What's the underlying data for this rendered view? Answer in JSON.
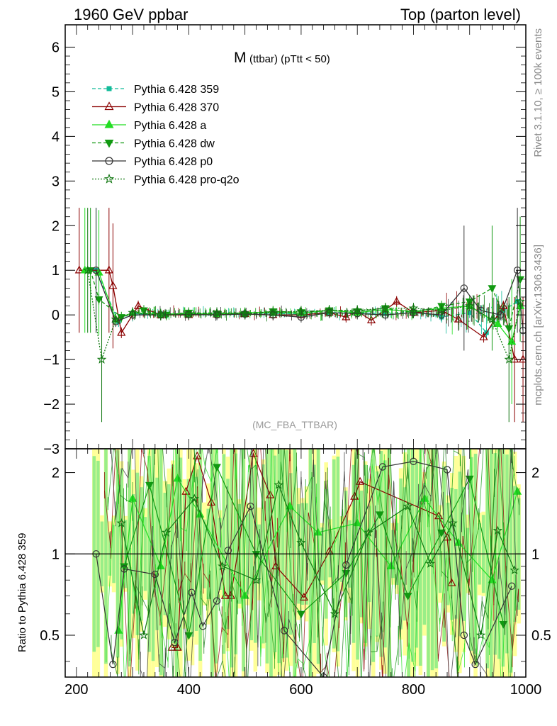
{
  "header": {
    "left": "1960 GeV ppbar",
    "right": "Top (parton level)"
  },
  "side_labels": {
    "rivet": "Rivet 3.1.10, ≥ 100k events",
    "mcplots": "mcplots.cern.ch [arXiv:1306.3436]"
  },
  "colors": {
    "band_yellow": "#ffff99",
    "band_green": "#99ee88",
    "ref_line": "#000000"
  },
  "chart_data": [
    {
      "type": "line",
      "title_main": "M",
      "title_sub": "(ttbar) (pTtt < 50)",
      "watermark": "(MC_FBA_TTBAR)",
      "xlim": [
        180,
        1000
      ],
      "ylim": [
        -3,
        6.5
      ],
      "y_ticks": [
        -3,
        -2,
        -1,
        0,
        1,
        2,
        3,
        4,
        5,
        6
      ],
      "y_tick_labels": [
        "−3",
        "−2",
        "−1",
        "0",
        "1",
        "2",
        "3",
        "4",
        "5",
        "6"
      ],
      "legend_position": "top-left",
      "series": [
        {
          "name": "Pythia 6.428 359",
          "color": "#11bb99",
          "dash": "5,3",
          "marker": "square-filled",
          "x": [
            235,
            275,
            300,
            350,
            400,
            450,
            500,
            550,
            600,
            650,
            700,
            750,
            800,
            850,
            900,
            930,
            960,
            985
          ],
          "y": [
            1.0,
            -0.15,
            0.03,
            0.0,
            0.01,
            0.0,
            0.02,
            0.03,
            0.02,
            0.05,
            0.05,
            0.03,
            0.08,
            -0.05,
            0.05,
            -0.4,
            0.1,
            0.3
          ]
        },
        {
          "name": "Pythia 6.428 370",
          "color": "#8b0000",
          "dash": "",
          "marker": "triangle-open",
          "x": [
            205,
            258,
            265,
            280,
            310,
            350,
            400,
            450,
            500,
            550,
            600,
            650,
            680,
            700,
            725,
            770,
            800,
            850,
            880,
            925,
            960,
            980,
            995
          ],
          "y": [
            1.0,
            1.0,
            0.65,
            -0.4,
            0.2,
            0.0,
            0.0,
            0.01,
            0.02,
            0.0,
            0.0,
            0.05,
            -0.05,
            0.08,
            -0.12,
            0.3,
            0.05,
            0.1,
            -0.1,
            -0.5,
            0.2,
            -1.0,
            -1.0
          ]
        },
        {
          "name": "Pythia 6.428 a",
          "color": "#22dd22",
          "dash": "",
          "marker": "triangle-filled",
          "x": [
            215,
            240,
            270,
            300,
            350,
            400,
            450,
            500,
            550,
            600,
            650,
            700,
            750,
            800,
            850,
            900,
            950,
            975,
            990
          ],
          "y": [
            1.0,
            0.95,
            -0.1,
            0.05,
            0.02,
            0.03,
            0.02,
            0.05,
            0.06,
            0.04,
            0.1,
            0.05,
            0.12,
            0.08,
            0.15,
            0.2,
            -0.2,
            -0.6,
            0.2
          ]
        },
        {
          "name": "Pythia 6.428 dw",
          "color": "#119911",
          "dash": "5,3",
          "marker": "triangle-down-filled",
          "x": [
            225,
            240,
            280,
            320,
            360,
            400,
            450,
            500,
            550,
            600,
            650,
            700,
            750,
            800,
            850,
            900,
            940,
            970,
            990
          ],
          "y": [
            1.0,
            0.35,
            -0.05,
            0.1,
            0.0,
            0.05,
            0.03,
            0.02,
            0.08,
            0.06,
            0.1,
            0.08,
            0.15,
            0.05,
            0.2,
            0.3,
            0.6,
            -0.3,
            0.8
          ]
        },
        {
          "name": "Pythia 6.428 p0",
          "color": "#333333",
          "dash": "",
          "marker": "circle-open",
          "x": [
            235,
            270,
            300,
            350,
            400,
            450,
            500,
            550,
            600,
            650,
            700,
            750,
            800,
            850,
            890,
            920,
            955,
            985,
            995
          ],
          "y": [
            1.0,
            -0.15,
            0.0,
            0.0,
            0.01,
            0.0,
            0.02,
            0.0,
            -0.05,
            0.05,
            0.03,
            0.0,
            0.05,
            0.0,
            0.6,
            0.1,
            0.0,
            1.0,
            -0.35
          ]
        },
        {
          "name": "Pythia 6.428 pro-q2o",
          "color": "#117711",
          "dash": "2,2",
          "marker": "star-open",
          "x": [
            220,
            245,
            270,
            300,
            350,
            400,
            450,
            500,
            550,
            600,
            650,
            700,
            750,
            800,
            850,
            900,
            940,
            970,
            990
          ],
          "y": [
            1.0,
            -1.0,
            -0.1,
            0.05,
            0.0,
            0.02,
            0.05,
            0.03,
            0.05,
            0.08,
            0.1,
            0.1,
            0.15,
            0.15,
            0.1,
            0.2,
            -0.1,
            -1.0,
            0.3
          ]
        }
      ]
    },
    {
      "type": "line",
      "ylabel": "Ratio to Pythia 6.428 359",
      "xlim": [
        180,
        1000
      ],
      "ylim": [
        0.35,
        2.45
      ],
      "y_ticks": [
        0.5,
        1,
        2
      ],
      "y_tick_labels": [
        "0.5",
        "1",
        "2"
      ],
      "x_ticks": [
        200,
        400,
        600,
        800,
        1000
      ],
      "x_tick_labels": [
        "200",
        "400",
        "600",
        "800",
        "1000"
      ],
      "reference": 1,
      "series": [
        {
          "name": "Pythia 6.428 370",
          "color": "#8b0000",
          "marker": "triangle-open",
          "x": [
            370,
            380,
            395,
            415,
            440,
            465,
            475,
            515,
            545,
            555,
            605,
            650,
            695,
            705,
            845,
            860,
            868
          ],
          "y": [
            0.45,
            0.45,
            1.7,
            2.3,
            1.55,
            0.7,
            0.7,
            2.35,
            1.65,
            0.9,
            0.69,
            1.02,
            1.63,
            1.85,
            1.38,
            1.15,
            0.78
          ]
        },
        {
          "name": "Pythia 6.428 a",
          "color": "#22dd22",
          "marker": "triangle-filled",
          "x": [
            275,
            300,
            350,
            380,
            420,
            500,
            580,
            630,
            700,
            760,
            820,
            880,
            940,
            985
          ],
          "y": [
            0.52,
            1.6,
            0.9,
            1.9,
            1.4,
            0.7,
            1.5,
            1.2,
            1.3,
            0.9,
            1.6,
            1.1,
            0.8,
            1.7
          ]
        },
        {
          "name": "Pythia 6.428 dw",
          "color": "#119911",
          "marker": "triangle-down-filled",
          "x": [
            285,
            330,
            400,
            450,
            520,
            600,
            680,
            740,
            790,
            850,
            900,
            960
          ],
          "y": [
            0.9,
            1.8,
            0.5,
            2.1,
            1.0,
            0.6,
            0.85,
            1.4,
            0.7,
            1.2,
            1.9,
            0.55
          ]
        },
        {
          "name": "Pythia 6.428 p0",
          "color": "#333333",
          "marker": "circle-open",
          "x": [
            235,
            265,
            285,
            340,
            375,
            405,
            425,
            450,
            470,
            510,
            570,
            640,
            680,
            745,
            800,
            860,
            890,
            910,
            975
          ],
          "y": [
            1.0,
            0.39,
            0.88,
            0.84,
            0.47,
            0.72,
            0.54,
            0.67,
            1.03,
            1.5,
            0.52,
            0.35,
            0.91,
            2.1,
            2.2,
            2.05,
            0.5,
            0.39,
            0.76
          ]
        },
        {
          "name": "Pythia 6.428 pro-q2o",
          "color": "#117711",
          "marker": "star-open",
          "x": [
            280,
            320,
            360,
            410,
            460,
            520,
            560,
            600,
            660,
            720,
            790,
            830,
            870,
            920,
            950,
            980
          ],
          "y": [
            1.3,
            0.5,
            1.2,
            1.6,
            0.9,
            0.8,
            1.8,
            1.1,
            0.6,
            1.2,
            1.5,
            0.92,
            1.3,
            0.5,
            1.22,
            0.87
          ]
        }
      ]
    }
  ]
}
